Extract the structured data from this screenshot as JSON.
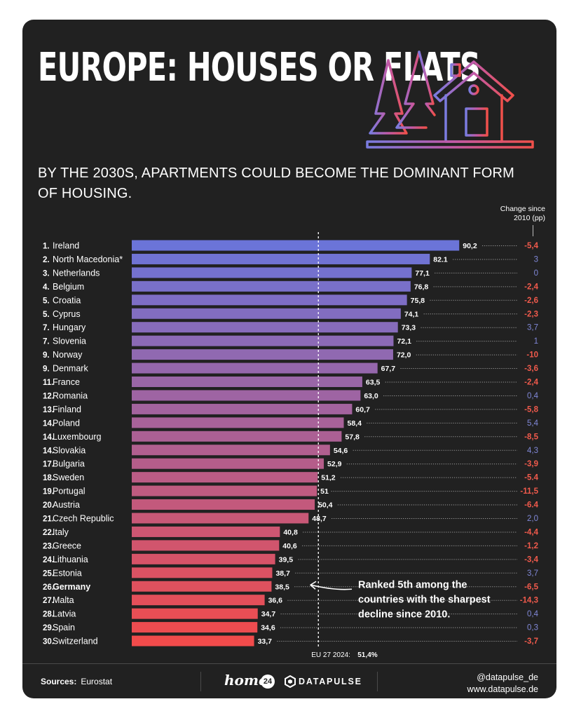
{
  "header": {
    "title": "EUROPE: HOUSES OR FLATS",
    "subtitle": "BY THE 2030S, APARTMENTS COULD BECOME THE DOMINANT FORM OF HOUSING.",
    "change_label": "Change since 2010 (pp)"
  },
  "chart_data": {
    "type": "bar",
    "orientation": "horizontal",
    "xlim": [
      0,
      100
    ],
    "grid": false,
    "categories": [
      "Ireland",
      "North Macedonia*",
      "Netherlands",
      "Belgium",
      "Croatia",
      "Cyprus",
      "Hungary",
      "Slovenia",
      "Norway",
      "Denmark",
      "France",
      "Romania",
      "Finland",
      "Poland",
      "Luxembourg",
      "Slovakia",
      "Bulgaria",
      "Sweden",
      "Portugal",
      "Austria",
      "Czech Republic",
      "Italy",
      "Greece",
      "Lithuania",
      "Estonia",
      "Germany",
      "Malta",
      "Latvia",
      "Spain",
      "Switzerland"
    ],
    "ranks": [
      "1.",
      "2.",
      "3.",
      "4.",
      "5.",
      "5.",
      "7.",
      "7.",
      "9.",
      "9.",
      "11.",
      "12.",
      "13.",
      "14.",
      "14.",
      "14.",
      "17.",
      "18.",
      "19.",
      "20.",
      "21.",
      "22.",
      "23.",
      "24.",
      "25.",
      "26.",
      "27.",
      "28.",
      "29.",
      "30."
    ],
    "values": [
      90.2,
      82.1,
      77.1,
      76.8,
      75.8,
      74.1,
      73.3,
      72.1,
      72.0,
      67.7,
      63.5,
      63.0,
      60.7,
      58.4,
      57.8,
      54.6,
      52.9,
      51.2,
      51,
      50.4,
      48.7,
      40.8,
      40.6,
      39.5,
      38.7,
      38.5,
      36.6,
      34.7,
      34.6,
      33.7
    ],
    "value_labels": [
      "90,2",
      "82.1",
      "77,1",
      "76,8",
      "75,8",
      "74,1",
      "73,3",
      "72,1",
      "72,0",
      "67,7",
      "63,5",
      "63,0",
      "60,7",
      "58,4",
      "57,8",
      "54,6",
      "52,9",
      "51,2",
      "51",
      "50,4",
      "48,7",
      "40,8",
      "40,6",
      "39,5",
      "38,7",
      "38,5",
      "36,6",
      "34,7",
      "34,6",
      "33,7"
    ],
    "changes": [
      -5.4,
      3,
      0,
      -2.4,
      -2.6,
      -2.3,
      3.7,
      1,
      -10,
      -3.6,
      -2.4,
      0.4,
      -5.8,
      5.4,
      -8.5,
      4.3,
      -3.9,
      -5.4,
      -11.5,
      -6.4,
      2.0,
      -4.4,
      -1.2,
      -3.4,
      3.7,
      -6.5,
      -14.3,
      0.4,
      0.3,
      -3.7
    ],
    "change_labels": [
      "-5,4",
      "3",
      "0",
      "-2,4",
      "-2,6",
      "-2,3",
      "3,7",
      "1",
      "-10",
      "-3,6",
      "-2,4",
      "0,4",
      "-5,8",
      "5,4",
      "-8,5",
      "4,3",
      "-3,9",
      "-5.4",
      "-11,5",
      "-6.4",
      "2,0",
      "-4,4",
      "-1,2",
      "-3,4",
      "3,7",
      "-6,5",
      "-14,3",
      "0,4",
      "0,3",
      "-3,7"
    ],
    "highlight_category": "Germany",
    "reference_line": {
      "value": 51.4,
      "label": "EU 27 2024:",
      "value_label": "51,4%"
    },
    "annotation": "Ranked 5th among the countries with the sharpest decline since 2010.",
    "colors": {
      "bar_top": "#6b74d8",
      "bar_bottom": "#f24b4b",
      "negative_change": "#f05a4c",
      "positive_change": "#8088d8"
    }
  },
  "footer": {
    "sources_label": "Sources:",
    "sources_value": "Eurostat",
    "brand_home": "home",
    "brand_home_badge": "24",
    "brand_datapulse": "DATAPULSE",
    "handle": "@datapulse_de",
    "website": "www.datapulse.de"
  },
  "icons": [
    "house-tree-icon",
    "datapulse-logo-icon",
    "curved-arrow-icon"
  ]
}
